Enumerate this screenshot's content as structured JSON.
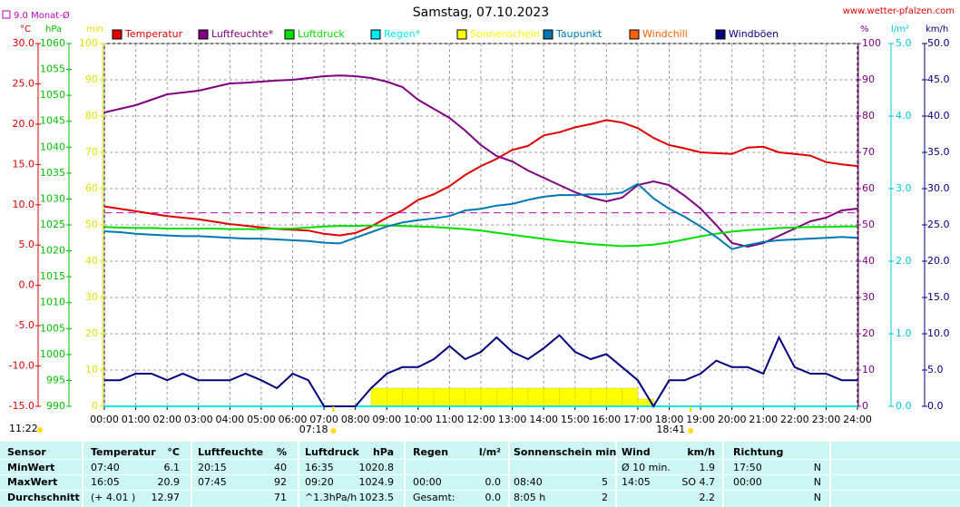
{
  "chart_data": {
    "type": "line",
    "title": "Samstag, 07.10.2023",
    "source": "www.wetter-pfalzen.com",
    "reference": {
      "label": "9.0 Monat-Ø",
      "value": 9.0,
      "axis": 0,
      "color": "#c000c0"
    },
    "day_length": "11:22",
    "sunrise": {
      "value": 7.3,
      "label": "07:18"
    },
    "sunset": {
      "value": 18.6833,
      "label": "18:41"
    },
    "grid": true,
    "xlim": [
      0,
      24
    ],
    "xticks": [
      {
        "value": 0,
        "label": "00:00"
      },
      {
        "value": 1,
        "label": "01:00"
      },
      {
        "value": 2,
        "label": "02:00"
      },
      {
        "value": 3,
        "label": "03:00"
      },
      {
        "value": 4,
        "label": "04:00"
      },
      {
        "value": 5,
        "label": "05:00"
      },
      {
        "value": 6,
        "label": "06:00"
      },
      {
        "value": 7,
        "label": "07:00"
      },
      {
        "value": 8,
        "label": "08:00"
      },
      {
        "value": 9,
        "label": "09:00"
      },
      {
        "value": 10,
        "label": "10:00"
      },
      {
        "value": 11,
        "label": "11:00"
      },
      {
        "value": 12,
        "label": "12:00"
      },
      {
        "value": 13,
        "label": "13:00"
      },
      {
        "value": 14,
        "label": "14:00"
      },
      {
        "value": 15,
        "label": "15:00"
      },
      {
        "value": 16,
        "label": "16:00"
      },
      {
        "value": 17,
        "label": "17:00"
      },
      {
        "value": 18,
        "label": "18:00"
      },
      {
        "value": 19,
        "label": "19:00"
      },
      {
        "value": 20,
        "label": "20:00"
      },
      {
        "value": 21,
        "label": "21:00"
      },
      {
        "value": 22,
        "label": "22:00"
      },
      {
        "value": 23,
        "label": "23:00"
      },
      {
        "value": 24,
        "label": "24:00"
      }
    ],
    "y_axes": [
      {
        "unit": "°C",
        "color": "#e00000",
        "lim": [
          -15,
          30
        ],
        "ticks": [
          {
            "value": -15,
            "label": "-15.0"
          },
          {
            "value": -10,
            "label": "-10.0"
          },
          {
            "value": -5,
            "label": "-5.0"
          },
          {
            "value": 0,
            "label": "0.0"
          },
          {
            "value": 5,
            "label": "5.0"
          },
          {
            "value": 10,
            "label": "10.0"
          },
          {
            "value": 15,
            "label": "15.0"
          },
          {
            "value": 20,
            "label": "20.0"
          },
          {
            "value": 25,
            "label": "25.0"
          },
          {
            "value": 30,
            "label": "30.0"
          }
        ]
      },
      {
        "unit": "hPa",
        "color": "#00c000",
        "lim": [
          990,
          1060
        ],
        "ticks": [
          990,
          995,
          1000,
          1005,
          1010,
          1015,
          1020,
          1025,
          1030,
          1035,
          1040,
          1045,
          1050,
          1055,
          1060
        ]
      },
      {
        "unit": "min",
        "color": "#e0e000",
        "lim": [
          0,
          100
        ],
        "ticks": [
          0,
          10,
          20,
          30,
          40,
          50,
          60,
          70,
          80,
          90,
          100
        ]
      },
      {
        "unit": "%",
        "color": "#800080",
        "lim": [
          0,
          100
        ],
        "ticks": [
          0,
          10,
          20,
          30,
          40,
          50,
          60,
          70,
          80,
          90,
          100
        ]
      },
      {
        "unit": "l/m²",
        "color": "#00c8d8",
        "lim": [
          0,
          5
        ],
        "ticks": [
          {
            "value": 0,
            "label": "0.0"
          },
          {
            "value": 1,
            "label": "1.0"
          },
          {
            "value": 2,
            "label": "2.0"
          },
          {
            "value": 3,
            "label": "3.0"
          },
          {
            "value": 4,
            "label": "4.0"
          },
          {
            "value": 5,
            "label": "5.0"
          }
        ]
      },
      {
        "unit": "km/h",
        "color": "#000080",
        "lim": [
          0,
          50
        ],
        "ticks": [
          {
            "value": 0,
            "label": "0.0"
          },
          {
            "value": 5,
            "label": "5.0"
          },
          {
            "value": 10,
            "label": "10.0"
          },
          {
            "value": 15,
            "label": "15.0"
          },
          {
            "value": 20,
            "label": "20.0"
          },
          {
            "value": 25,
            "label": "25.0"
          },
          {
            "value": 30,
            "label": "30.0"
          },
          {
            "value": 35,
            "label": "35.0"
          },
          {
            "value": 40,
            "label": "40.0"
          },
          {
            "value": 45,
            "label": "45.0"
          },
          {
            "value": 50,
            "label": "50.0"
          }
        ]
      }
    ],
    "x": [
      0,
      0.5,
      1,
      1.5,
      2,
      2.5,
      3,
      3.5,
      4,
      4.5,
      5,
      5.5,
      6,
      6.5,
      7,
      7.5,
      8,
      8.5,
      9,
      9.5,
      10,
      10.5,
      11,
      11.5,
      12,
      12.5,
      13,
      13.5,
      14,
      14.5,
      15,
      15.5,
      16,
      16.5,
      17,
      17.5,
      18,
      18.5,
      19,
      19.5,
      20,
      20.5,
      21,
      21.5,
      22,
      22.5,
      23,
      23.5,
      24
    ],
    "series": [
      {
        "name": "Temperatur",
        "color": "#e00000",
        "axis": 0,
        "type": "line",
        "values": [
          9.8,
          9.5,
          9.2,
          8.9,
          8.6,
          8.4,
          8.2,
          7.9,
          7.6,
          7.4,
          7.2,
          7.0,
          6.9,
          6.8,
          6.4,
          6.2,
          6.5,
          7.3,
          8.4,
          9.3,
          10.6,
          11.3,
          12.3,
          13.7,
          14.8,
          15.7,
          16.8,
          17.3,
          18.6,
          19.0,
          19.6,
          20.0,
          20.5,
          20.2,
          19.5,
          18.3,
          17.4,
          17.0,
          16.5,
          16.4,
          16.3,
          17.1,
          17.2,
          16.5,
          16.3,
          16.1,
          15.3,
          15.0,
          14.8
        ]
      },
      {
        "name": "Luftfeuchte*",
        "color": "#800080",
        "axis": 3,
        "type": "line",
        "values": [
          81,
          82,
          83,
          84.5,
          86,
          86.5,
          87,
          88,
          89,
          89.2,
          89.5,
          89.8,
          90,
          90.5,
          91,
          91.2,
          91,
          90.5,
          89.5,
          88,
          84.5,
          82,
          79.5,
          76,
          72,
          69,
          67.5,
          65,
          63,
          61,
          59,
          57.5,
          56.5,
          57.5,
          61,
          62,
          61,
          58,
          54.5,
          50,
          45,
          44,
          45,
          47,
          49,
          51,
          52,
          54,
          54.5
        ]
      },
      {
        "name": "Luftdruck",
        "color": "#00e000",
        "axis": 1,
        "type": "line",
        "values": [
          1024.6,
          1024.5,
          1024.4,
          1024.4,
          1024.3,
          1024.3,
          1024.3,
          1024.3,
          1024.2,
          1024.2,
          1024.2,
          1024.3,
          1024.3,
          1024.5,
          1024.7,
          1024.8,
          1024.8,
          1024.9,
          1024.9,
          1024.8,
          1024.7,
          1024.6,
          1024.4,
          1024.2,
          1023.9,
          1023.5,
          1023.1,
          1022.7,
          1022.3,
          1021.9,
          1021.6,
          1021.3,
          1021.1,
          1020.9,
          1021.0,
          1021.2,
          1021.6,
          1022.2,
          1022.8,
          1023.3,
          1023.7,
          1024.0,
          1024.2,
          1024.4,
          1024.5,
          1024.6,
          1024.6,
          1024.7,
          1024.7
        ]
      },
      {
        "name": "Regen*",
        "color": "#00e8f0",
        "axis": 4,
        "type": "line",
        "values": [
          0,
          0,
          0,
          0,
          0,
          0,
          0,
          0,
          0,
          0,
          0,
          0,
          0,
          0,
          0,
          0,
          0,
          0,
          0,
          0,
          0,
          0,
          0,
          0,
          0,
          0,
          0,
          0,
          0,
          0,
          0,
          0,
          0,
          0,
          0,
          0,
          0,
          0,
          0,
          0,
          0,
          0,
          0,
          0,
          0,
          0,
          0,
          0,
          0
        ]
      },
      {
        "name": "Sonnenschein",
        "color": "#ffff00",
        "axis": 2,
        "type": "bar",
        "values": [
          0,
          0,
          0,
          0,
          0,
          0,
          0,
          0,
          0,
          0,
          0,
          0,
          0,
          0,
          0,
          0,
          0,
          5,
          5,
          5,
          5,
          5,
          5,
          5,
          5,
          5,
          5,
          5,
          5,
          5,
          5,
          5,
          5,
          5,
          2,
          0,
          0,
          0,
          0,
          0,
          0,
          0,
          0,
          0,
          0,
          0,
          0,
          0,
          0
        ]
      },
      {
        "name": "Taupunkt",
        "color": "#0078b4",
        "axis": 0,
        "type": "line",
        "values": [
          6.7,
          6.6,
          6.4,
          6.3,
          6.2,
          6.1,
          6.1,
          6.0,
          5.9,
          5.8,
          5.8,
          5.7,
          5.6,
          5.5,
          5.3,
          5.2,
          5.9,
          6.6,
          7.3,
          7.8,
          8.1,
          8.3,
          8.6,
          9.3,
          9.5,
          9.9,
          10.1,
          10.6,
          11.0,
          11.2,
          11.2,
          11.3,
          11.3,
          11.5,
          12.6,
          10.8,
          9.5,
          8.5,
          7.3,
          6.0,
          4.5,
          5.0,
          5.4,
          5.6,
          5.7,
          5.8,
          5.9,
          6.0,
          5.9
        ]
      },
      {
        "name": "Windchill",
        "color": "#ff6000",
        "axis": 0,
        "type": "line",
        "values": [
          null,
          null,
          null,
          null,
          null,
          null,
          null,
          null,
          null,
          null,
          null,
          null,
          null,
          null,
          null,
          null,
          null,
          null,
          null,
          null,
          null,
          null,
          null,
          null,
          null,
          null,
          null,
          null,
          null,
          null,
          null,
          null,
          null,
          null,
          null,
          null,
          null,
          null,
          null,
          null,
          null,
          null,
          null,
          null,
          null,
          null,
          null,
          null,
          null
        ]
      },
      {
        "name": "Windböen",
        "color": "#000080",
        "axis": 5,
        "type": "line",
        "values": [
          3.6,
          3.6,
          4.5,
          4.5,
          3.6,
          4.5,
          3.6,
          3.6,
          3.6,
          4.5,
          3.6,
          2.5,
          4.5,
          3.6,
          0,
          0,
          0,
          2.5,
          4.5,
          5.4,
          5.4,
          6.5,
          8.3,
          6.5,
          7.5,
          9.5,
          7.5,
          6.5,
          8,
          9.8,
          7.5,
          6.5,
          7.2,
          5.4,
          3.6,
          0,
          3.6,
          3.6,
          4.5,
          6.3,
          5.4,
          5.4,
          4.5,
          9.5,
          5.4,
          4.5,
          4.5,
          3.6,
          3.6
        ]
      }
    ]
  },
  "table": {
    "rows": [
      [
        "Sensor",
        "Temperatur",
        "°C",
        "Luftfeuchte",
        "%",
        "Luftdruck",
        "hPa",
        "Regen",
        "l/m²",
        "Sonnenschein min",
        null,
        "Wind",
        "km/h",
        "Richtung",
        null
      ],
      [
        "MinWert",
        "07:40",
        "6.1",
        "20:15",
        "40",
        "16:35",
        "1020.8",
        null,
        null,
        null,
        null,
        "Ø 10 min.",
        "1.9",
        "17:50",
        "N"
      ],
      [
        "MaxWert",
        "16:05",
        "20.9",
        "07:45",
        "92",
        "09:20",
        "1024.9",
        "00:00",
        "0.0",
        "08:40",
        "5",
        "14:05",
        "SO 4.7",
        "00:00",
        "N"
      ],
      [
        "Durchschnitt",
        "(+ 4.01 )",
        "12.97",
        null,
        "71",
        "^1.3hPa/h",
        "1023.5",
        "Gesamt:",
        "0.0",
        "8:05 h",
        "2",
        null,
        "2.2",
        null,
        "N"
      ]
    ]
  }
}
